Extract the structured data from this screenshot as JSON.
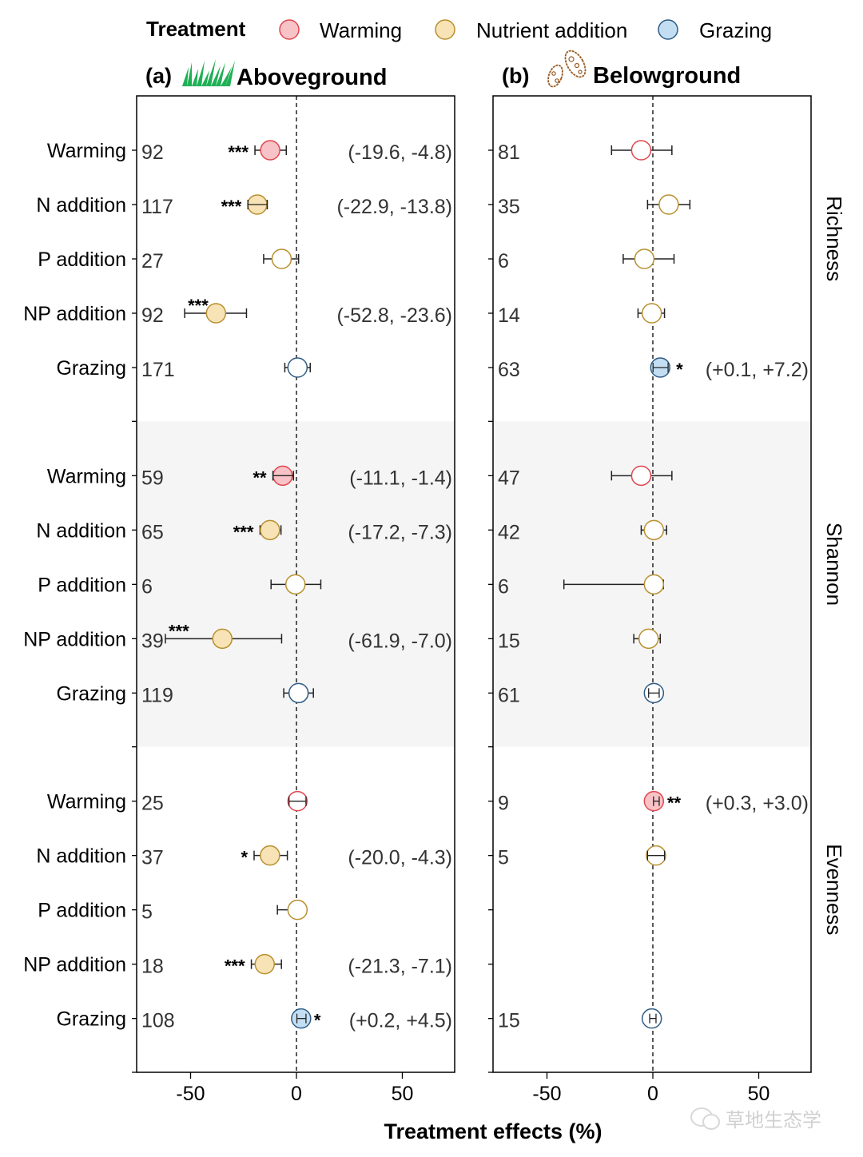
{
  "chart_data": {
    "type": "forest",
    "legend": {
      "title": "Treatment",
      "placement": "top",
      "entries": [
        {
          "name": "Warming",
          "fill": "#f8c3c6",
          "stroke": "#e0474f"
        },
        {
          "name": "Nutrient addition",
          "fill": "#f7e3b5",
          "stroke": "#b8902f"
        },
        {
          "name": "Grazing",
          "fill": "#c3def2",
          "stroke": "#2f5c85"
        }
      ]
    },
    "xlabel": "Treatment effects (%)",
    "xlim": [
      -75,
      75
    ],
    "xticks": [
      -50,
      0,
      50
    ],
    "reference_line": 0,
    "row_labels": [
      "Warming",
      "N addition",
      "P addition",
      "NP addition",
      "Grazing"
    ],
    "row_groups": [
      "Warming",
      "Nutrient addition",
      "Nutrient addition",
      "Nutrient addition",
      "Grazing"
    ],
    "metrics": [
      "Richness",
      "Shannon",
      "Evenness"
    ],
    "shaded_metric": "Shannon",
    "panels": [
      {
        "label": "(a)",
        "title": "Aboveground",
        "icon": "grass-icon",
        "rows": [
          {
            "metric": "Richness",
            "treatment": "Warming",
            "n": "92",
            "mean": -12.4,
            "lo": -19.6,
            "hi": -4.8,
            "sig": "***",
            "ci_text": "(-19.6, -4.8)",
            "filled": true
          },
          {
            "metric": "Richness",
            "treatment": "N addition",
            "n": "117",
            "mean": -18.5,
            "lo": -22.9,
            "hi": -13.8,
            "sig": "***",
            "ci_text": "(-22.9, -13.8)",
            "filled": true
          },
          {
            "metric": "Richness",
            "treatment": "P addition",
            "n": "27",
            "mean": -7.0,
            "lo": -15.5,
            "hi": 1.0,
            "sig": "",
            "ci_text": "",
            "filled": false
          },
          {
            "metric": "Richness",
            "treatment": "NP addition",
            "n": "92",
            "mean": -38.0,
            "lo": -52.8,
            "hi": -23.6,
            "sig": "***",
            "ci_text": "(-52.8, -23.6)",
            "filled": true
          },
          {
            "metric": "Richness",
            "treatment": "Grazing",
            "n": "171",
            "mean": 0.5,
            "lo": -5.5,
            "hi": 6.5,
            "sig": "",
            "ci_text": "",
            "filled": false
          },
          {
            "metric": "Shannon",
            "treatment": "Warming",
            "n": "59",
            "mean": -6.5,
            "lo": -11.1,
            "hi": -1.4,
            "sig": "**",
            "ci_text": "(-11.1, -1.4)",
            "filled": true
          },
          {
            "metric": "Shannon",
            "treatment": "N addition",
            "n": "65",
            "mean": -12.5,
            "lo": -17.2,
            "hi": -7.3,
            "sig": "***",
            "ci_text": "(-17.2, -7.3)",
            "filled": true
          },
          {
            "metric": "Shannon",
            "treatment": "P addition",
            "n": "6",
            "mean": -0.5,
            "lo": -12.0,
            "hi": 11.5,
            "sig": "",
            "ci_text": "",
            "filled": false
          },
          {
            "metric": "Shannon",
            "treatment": "NP addition",
            "n": "39",
            "mean": -35.0,
            "lo": -61.9,
            "hi": -7.0,
            "sig": "***",
            "ci_text": "(-61.9, -7.0)",
            "filled": true
          },
          {
            "metric": "Shannon",
            "treatment": "Grazing",
            "n": "119",
            "mean": 1.0,
            "lo": -6.0,
            "hi": 8.0,
            "sig": "",
            "ci_text": "",
            "filled": false
          },
          {
            "metric": "Evenness",
            "treatment": "Warming",
            "n": "25",
            "mean": 0.5,
            "lo": -3.5,
            "hi": 4.5,
            "sig": "",
            "ci_text": "",
            "filled": false
          },
          {
            "metric": "Evenness",
            "treatment": "N addition",
            "n": "37",
            "mean": -12.5,
            "lo": -20.0,
            "hi": -4.3,
            "sig": "*",
            "ci_text": "(-20.0, -4.3)",
            "filled": true
          },
          {
            "metric": "Evenness",
            "treatment": "P addition",
            "n": "5",
            "mean": 0.5,
            "lo": -9.0,
            "hi": 4.5,
            "sig": "",
            "ci_text": "",
            "filled": false
          },
          {
            "metric": "Evenness",
            "treatment": "NP addition",
            "n": "18",
            "mean": -15.0,
            "lo": -21.3,
            "hi": -7.1,
            "sig": "***",
            "ci_text": "(-21.3, -7.1)",
            "filled": true
          },
          {
            "metric": "Evenness",
            "treatment": "Grazing",
            "n": "108",
            "mean": 2.2,
            "lo": 0.2,
            "hi": 4.5,
            "sig": "*",
            "ci_text": "(+0.2, +4.5)",
            "filled": true
          }
        ]
      },
      {
        "label": "(b)",
        "title": "Belowground",
        "icon": "microbe-icon",
        "rows": [
          {
            "metric": "Richness",
            "treatment": "Warming",
            "n": "81",
            "mean": -5.5,
            "lo": -19.5,
            "hi": 9.0,
            "sig": "",
            "ci_text": "",
            "filled": false
          },
          {
            "metric": "Richness",
            "treatment": "N addition",
            "n": "35",
            "mean": 7.5,
            "lo": -2.5,
            "hi": 17.5,
            "sig": "",
            "ci_text": "",
            "filled": false
          },
          {
            "metric": "Richness",
            "treatment": "P addition",
            "n": "6",
            "mean": -4.0,
            "lo": -14.0,
            "hi": 10.0,
            "sig": "",
            "ci_text": "",
            "filled": false
          },
          {
            "metric": "Richness",
            "treatment": "NP addition",
            "n": "14",
            "mean": -0.5,
            "lo": -7.0,
            "hi": 5.5,
            "sig": "",
            "ci_text": "",
            "filled": false
          },
          {
            "metric": "Richness",
            "treatment": "Grazing",
            "n": "63",
            "mean": 3.5,
            "lo": 0.1,
            "hi": 7.2,
            "sig": "*",
            "ci_text": "(+0.1, +7.2)",
            "filled": true
          },
          {
            "metric": "Shannon",
            "treatment": "Warming",
            "n": "47",
            "mean": -5.5,
            "lo": -19.5,
            "hi": 9.0,
            "sig": "",
            "ci_text": "",
            "filled": false
          },
          {
            "metric": "Shannon",
            "treatment": "N addition",
            "n": "42",
            "mean": 0.5,
            "lo": -5.5,
            "hi": 6.5,
            "sig": "",
            "ci_text": "",
            "filled": false
          },
          {
            "metric": "Shannon",
            "treatment": "P addition",
            "n": "6",
            "mean": 0.5,
            "lo": -42.0,
            "hi": 5.0,
            "sig": "",
            "ci_text": "",
            "filled": false
          },
          {
            "metric": "Shannon",
            "treatment": "NP addition",
            "n": "15",
            "mean": -2.0,
            "lo": -9.0,
            "hi": 3.5,
            "sig": "",
            "ci_text": "",
            "filled": false
          },
          {
            "metric": "Shannon",
            "treatment": "Grazing",
            "n": "61",
            "mean": 0.5,
            "lo": -2.0,
            "hi": 3.0,
            "sig": "",
            "ci_text": "",
            "filled": false
          },
          {
            "metric": "Evenness",
            "treatment": "Warming",
            "n": "9",
            "mean": 0.5,
            "lo": 0.3,
            "hi": 3.0,
            "sig": "**",
            "ci_text": "(+0.3, +3.0)",
            "filled": true
          },
          {
            "metric": "Evenness",
            "treatment": "N addition",
            "n": "5",
            "mean": 1.5,
            "lo": -2.5,
            "hi": 5.5,
            "sig": "",
            "ci_text": "",
            "filled": false
          },
          {
            "metric": "Evenness",
            "treatment": "Grazing",
            "n": "15",
            "mean": -0.5,
            "lo": -1.5,
            "hi": 1.5,
            "sig": "",
            "ci_text": "",
            "filled": false
          }
        ]
      }
    ]
  },
  "watermark": "草地生态学"
}
